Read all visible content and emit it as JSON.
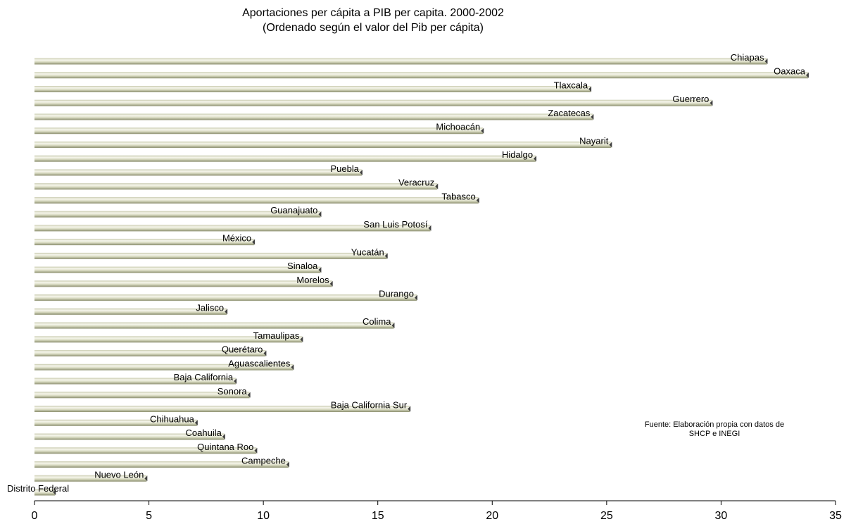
{
  "chart_data": {
    "type": "bar",
    "orientation": "horizontal",
    "title": "Aportaciones per cápita a PIB per capita. 2000-2002",
    "subtitle": "(Ordenado según el valor del Pib per cápita)",
    "annotation": "Fuente: Elaboración propia con datos de SHCP e INEGI",
    "xlim": [
      0,
      35
    ],
    "xticks": [
      0,
      5,
      10,
      15,
      20,
      25,
      30,
      35
    ],
    "grid": false,
    "legend": "none",
    "colors": {
      "bar_light": "#f3f3e6",
      "bar_mid": "#d4d6b8",
      "bar_dark": "#8b8e6e",
      "axis": "#000000"
    },
    "categories": [
      "Chiapas",
      "Oaxaca",
      "Tlaxcala",
      "Guerrero",
      "Zacatecas",
      "Michoacán",
      "Nayarit",
      "Hidalgo",
      "Puebla",
      "Veracruz",
      "Tabasco",
      "Guanajuato",
      "San Luis Potosí",
      "México",
      "Yucatán",
      "Sinaloa",
      "Morelos",
      "Durango",
      "Jalisco",
      "Colima",
      "Tamaulipas",
      "Querétaro",
      "Aguascalientes",
      "Baja California",
      "Sonora",
      "Baja California Sur",
      "Chihuahua",
      "Coahuila",
      "Quintana Roo",
      "Campeche",
      "Nuevo León",
      "Distrito Federal"
    ],
    "values": [
      32.0,
      33.8,
      24.3,
      29.6,
      24.4,
      19.6,
      25.2,
      21.9,
      14.3,
      17.6,
      19.4,
      12.5,
      17.3,
      9.6,
      15.4,
      12.5,
      13.0,
      16.7,
      8.4,
      15.7,
      11.7,
      10.1,
      11.3,
      8.8,
      9.4,
      16.4,
      7.1,
      8.3,
      9.7,
      11.1,
      4.9,
      0.9
    ]
  }
}
